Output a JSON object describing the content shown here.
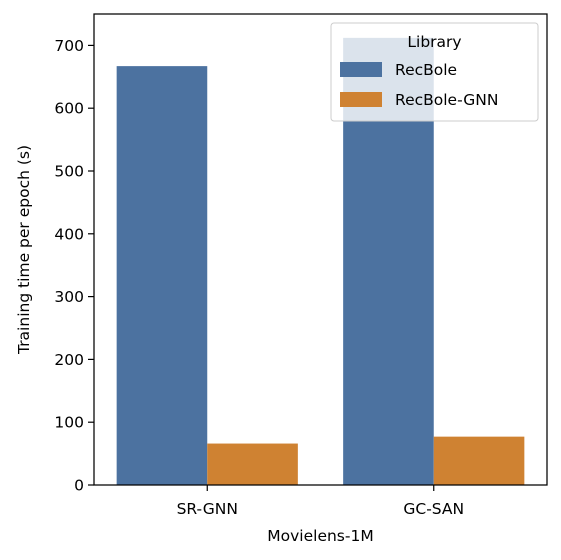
{
  "chart_data": {
    "type": "bar",
    "title": "",
    "xlabel": "Movielens-1M",
    "ylabel": "Training time per epoch (s)",
    "categories": [
      "SR-GNN",
      "GC-SAN"
    ],
    "series": [
      {
        "name": "RecBole",
        "values": [
          667,
          712
        ],
        "color": "#4c72a0"
      },
      {
        "name": "RecBole-GNN",
        "values": [
          66,
          77
        ],
        "color": "#cf8232"
      }
    ],
    "ylim": [
      0,
      750
    ],
    "yticks": [
      0,
      100,
      200,
      300,
      400,
      500,
      600,
      700
    ],
    "grid": false,
    "legend": {
      "title": "Library",
      "placement": "top-right"
    }
  }
}
